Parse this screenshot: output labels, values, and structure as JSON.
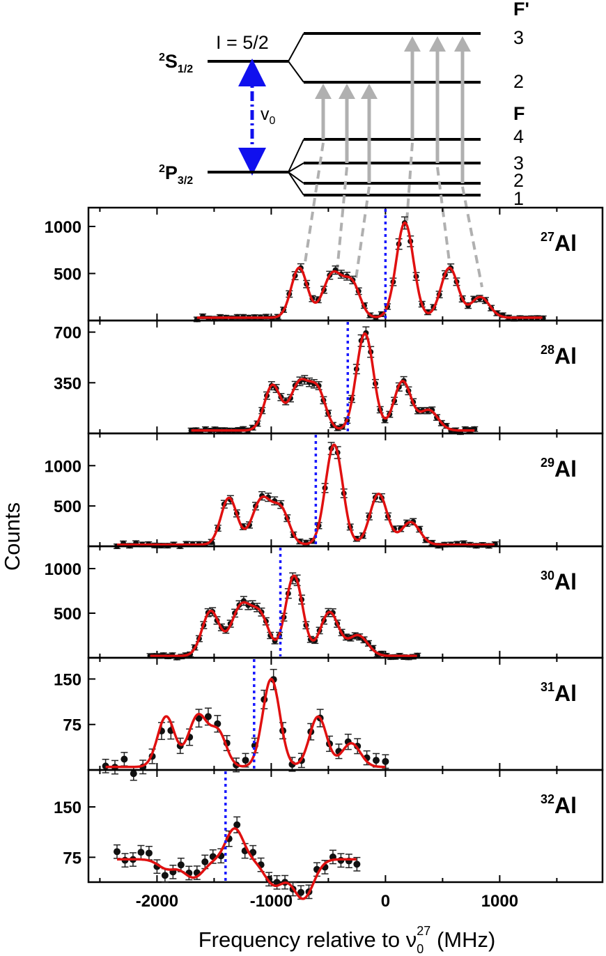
{
  "level_diagram": {
    "upper_state": "S",
    "upper_state_sup": "2",
    "upper_state_sub": "1/2",
    "lower_state": "P",
    "lower_state_sup": "2",
    "lower_state_sub": "3/2",
    "nuclear_spin": "I = 5/2",
    "transition_label": "v",
    "transition_label_sub": "0",
    "upper_quantum_label": "F'",
    "lower_quantum_label": "F",
    "upper_levels": [
      "3",
      "2"
    ],
    "lower_levels": [
      "4",
      "3",
      "2",
      "1"
    ]
  },
  "figure": {
    "ylabel": "Counts",
    "xlabel_prefix": "Frequency relative to ν",
    "xlabel_sub": "0",
    "xlabel_sup": "27",
    "xlabel_suffix": " (MHz)",
    "xticks": [
      "-2000",
      "-1000",
      "0",
      "1000"
    ]
  },
  "chart_data": [
    {
      "type": "scatter",
      "isotope_mass": "27",
      "isotope_element": "Al",
      "xlim": [
        -2600,
        1900
      ],
      "ylim": [
        0,
        1200
      ],
      "yticks": [
        "500",
        "1000"
      ],
      "centroid": 0,
      "x_range": [
        -1650,
        1380
      ],
      "baseline": 30,
      "peaks": [
        {
          "x": -755,
          "y": 560,
          "w": 70
        },
        {
          "x": -460,
          "y": 500,
          "w": 85
        },
        {
          "x": -290,
          "y": 370,
          "w": 70
        },
        {
          "x": 170,
          "y": 1040,
          "w": 75
        },
        {
          "x": 560,
          "y": 560,
          "w": 75
        },
        {
          "x": 830,
          "y": 250,
          "w": 80
        }
      ]
    },
    {
      "type": "scatter",
      "isotope_mass": "28",
      "isotope_element": "Al",
      "xlim": [
        -2600,
        1900
      ],
      "ylim": [
        0,
        780
      ],
      "yticks": [
        "350",
        "700"
      ],
      "centroid": -330,
      "x_range": [
        -1700,
        780
      ],
      "baseline": 20,
      "peaks": [
        {
          "x": -990,
          "y": 330,
          "w": 70
        },
        {
          "x": -750,
          "y": 350,
          "w": 85
        },
        {
          "x": -590,
          "y": 270,
          "w": 70
        },
        {
          "x": -180,
          "y": 690,
          "w": 75
        },
        {
          "x": 150,
          "y": 360,
          "w": 75
        },
        {
          "x": 380,
          "y": 160,
          "w": 80
        }
      ]
    },
    {
      "type": "scatter",
      "isotope_mass": "29",
      "isotope_element": "Al",
      "xlim": [
        -2600,
        1900
      ],
      "ylim": [
        0,
        1400
      ],
      "yticks": [
        "500",
        "1000"
      ],
      "centroid": -610,
      "x_range": [
        -2350,
        960
      ],
      "baseline": 20,
      "peaks": [
        {
          "x": -1370,
          "y": 600,
          "w": 70
        },
        {
          "x": -1080,
          "y": 590,
          "w": 85
        },
        {
          "x": -910,
          "y": 420,
          "w": 70
        },
        {
          "x": -450,
          "y": 1260,
          "w": 75
        },
        {
          "x": -60,
          "y": 650,
          "w": 75
        },
        {
          "x": 220,
          "y": 300,
          "w": 80
        }
      ]
    },
    {
      "type": "scatter",
      "isotope_mass": "30",
      "isotope_element": "Al",
      "xlim": [
        -2600,
        1900
      ],
      "ylim": [
        0,
        1250
      ],
      "yticks": [
        "500",
        "1000"
      ],
      "centroid": -920,
      "x_range": [
        -2060,
        280
      ],
      "baseline": 20,
      "peaks": [
        {
          "x": -1530,
          "y": 520,
          "w": 75
        },
        {
          "x": -1260,
          "y": 580,
          "w": 90
        },
        {
          "x": -1090,
          "y": 420,
          "w": 75
        },
        {
          "x": -800,
          "y": 920,
          "w": 75
        },
        {
          "x": -490,
          "y": 510,
          "w": 80
        },
        {
          "x": -240,
          "y": 250,
          "w": 85
        }
      ]
    },
    {
      "type": "scatter",
      "isotope_mass": "31",
      "isotope_element": "Al",
      "xlim": [
        -2600,
        1900
      ],
      "ylim": [
        0,
        185
      ],
      "yticks": [
        "75",
        "150"
      ],
      "centroid": -1150,
      "x_range": [
        -2450,
        0
      ],
      "baseline": 5,
      "peaks": [
        {
          "x": -1920,
          "y": 88,
          "w": 75
        },
        {
          "x": -1640,
          "y": 90,
          "w": 85
        },
        {
          "x": -1460,
          "y": 58,
          "w": 70
        },
        {
          "x": -1000,
          "y": 150,
          "w": 75
        },
        {
          "x": -590,
          "y": 88,
          "w": 75
        },
        {
          "x": -300,
          "y": 44,
          "w": 80
        }
      ]
    },
    {
      "type": "scatter",
      "isotope_mass": "32",
      "isotope_element": "Al",
      "xlim": [
        -2600,
        1900
      ],
      "ylim": [
        38,
        205
      ],
      "yticks": [
        "75",
        "150"
      ],
      "centroid": -1400,
      "x_range": [
        -2350,
        -250
      ],
      "baseline": 72,
      "peaks": [
        {
          "x": -1910,
          "y": 58,
          "w": 80
        },
        {
          "x": -1680,
          "y": 45,
          "w": 90
        },
        {
          "x": -1320,
          "y": 118,
          "w": 75
        },
        {
          "x": -970,
          "y": 34,
          "w": 90
        },
        {
          "x": -720,
          "y": 14,
          "w": 90
        }
      ]
    }
  ]
}
